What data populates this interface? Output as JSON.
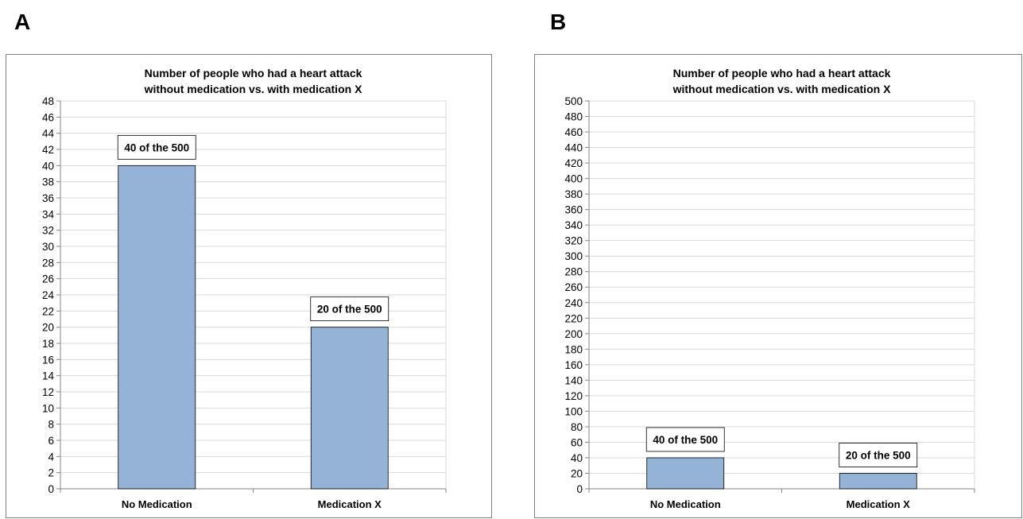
{
  "panels": {
    "a_letter": "A",
    "b_letter": "B"
  },
  "colors": {
    "bar_fill": "#95b3d7",
    "bar_stroke": "#000000",
    "grid": "#d9d9d9",
    "axis": "#868686"
  },
  "chart_data": [
    {
      "type": "bar",
      "title_lines": [
        "Number of people who had a heart attack",
        "without medication vs. with medication X"
      ],
      "categories": [
        "No Medication",
        "Medication X"
      ],
      "values": [
        40,
        20
      ],
      "data_labels": [
        "40 of the 500",
        "20 of the 500"
      ],
      "xlabel": "",
      "ylabel": "",
      "ylim": [
        0,
        48
      ],
      "ytick_step": 2,
      "grid": true,
      "legend": "none"
    },
    {
      "type": "bar",
      "title_lines": [
        "Number of people who had a heart attack",
        "without medication vs. with medication X"
      ],
      "categories": [
        "No Medication",
        "Medication X"
      ],
      "values": [
        40,
        20
      ],
      "data_labels": [
        "40 of the 500",
        "20 of the 500"
      ],
      "xlabel": "",
      "ylabel": "",
      "ylim": [
        0,
        500
      ],
      "ytick_step": 20,
      "grid": true,
      "legend": "none"
    }
  ]
}
